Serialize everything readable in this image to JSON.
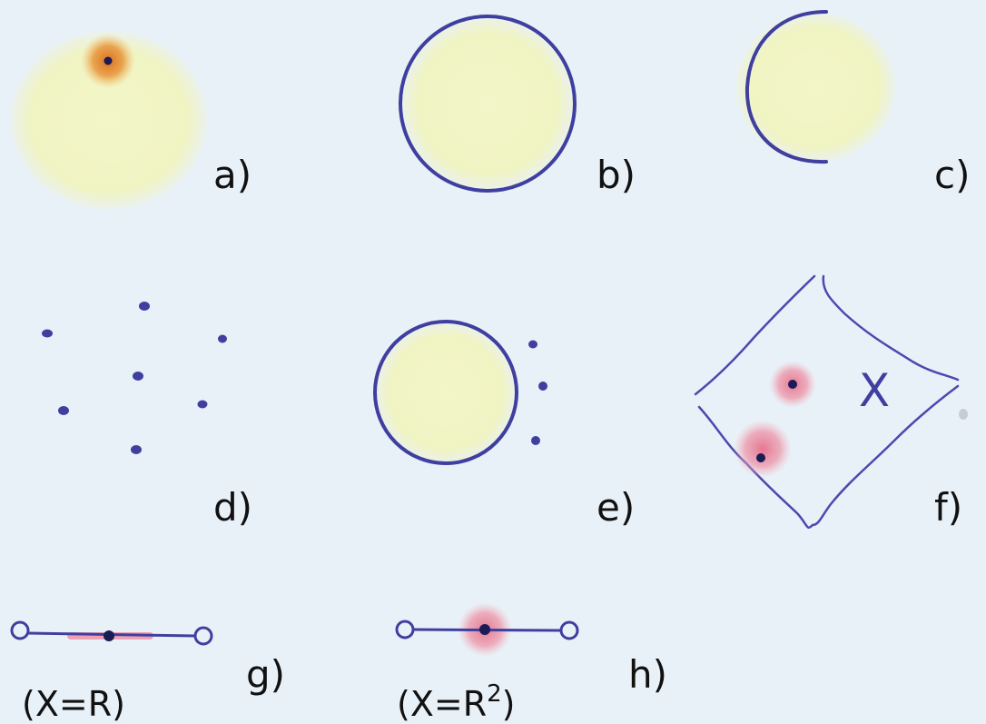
{
  "panels": {
    "a": {
      "label": "a)"
    },
    "b": {
      "label": "b)"
    },
    "c": {
      "label": "c)"
    },
    "d": {
      "label": "d)"
    },
    "e": {
      "label": "e)"
    },
    "f": {
      "label": "f)",
      "mark": "X"
    },
    "g": {
      "label": "g)",
      "equation": "(X=R)"
    },
    "h": {
      "label": "h)",
      "equation_prefix": "(X=R",
      "equation_exponent": "2",
      "equation_suffix": ")"
    }
  },
  "colors": {
    "background": "#e9f1f8",
    "ink": "#3f3f9f",
    "dot": "#1b1b55",
    "yellow_fill": "#f2f5c4",
    "orange_glow": "#e8953a",
    "pink_glow": "#e98aa0",
    "text": "#111111"
  }
}
